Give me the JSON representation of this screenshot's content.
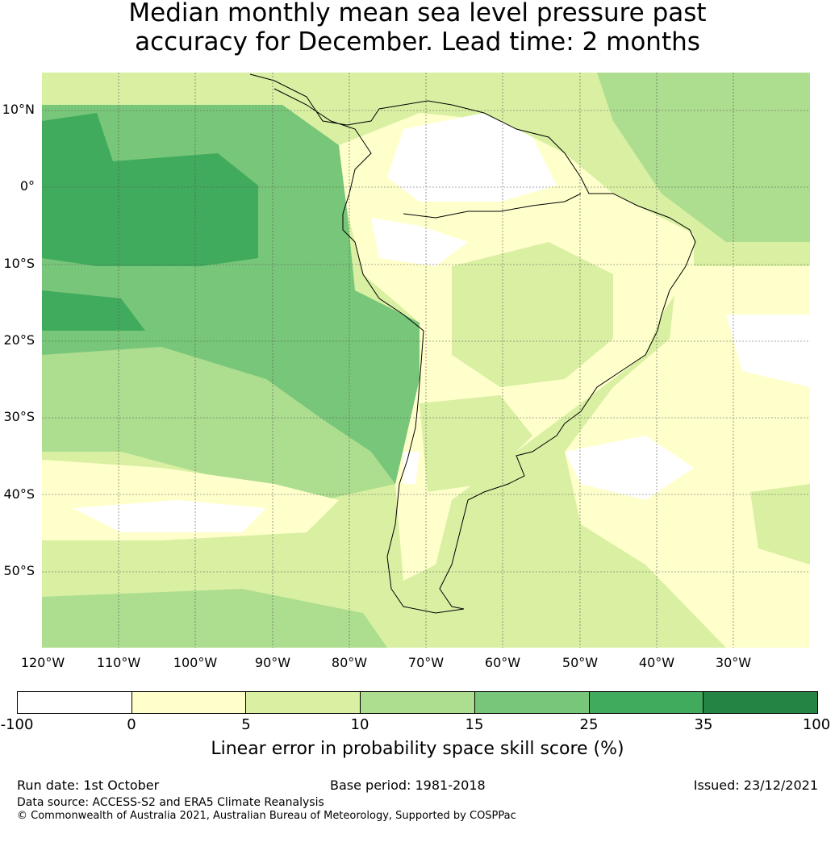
{
  "title_line1": "Median monthly mean sea level pressure past",
  "title_line2": "accuracy for December. Lead time: 2 months",
  "axes": {
    "lat_labels": [
      "10°N",
      "0°",
      "10°S",
      "20°S",
      "30°S",
      "40°S",
      "50°S"
    ],
    "lon_labels": [
      "120°W",
      "110°W",
      "100°W",
      "90°W",
      "80°W",
      "70°W",
      "60°W",
      "50°W",
      "40°W",
      "30°W"
    ]
  },
  "colorbar": {
    "ticks": [
      "-100",
      "0",
      "5",
      "10",
      "15",
      "25",
      "35",
      "100"
    ],
    "colors": [
      "#ffffff",
      "#ffffcc",
      "#d9f0a3",
      "#addd8e",
      "#78c679",
      "#41ab5d",
      "#238443"
    ],
    "label": "Linear error in probability space skill score (%)"
  },
  "footer": {
    "run_date": "Run date: 1st October",
    "base_period": "Base period: 1981-2018",
    "issued": "Issued: 23/12/2021",
    "data_source": "Data source: ACCESS-S2 and ERA5 Climate Reanalysis",
    "copyright": "© Commonwealth of Australia 2021, Australian Bureau of Meteorology, Supported by COSPPac"
  }
}
